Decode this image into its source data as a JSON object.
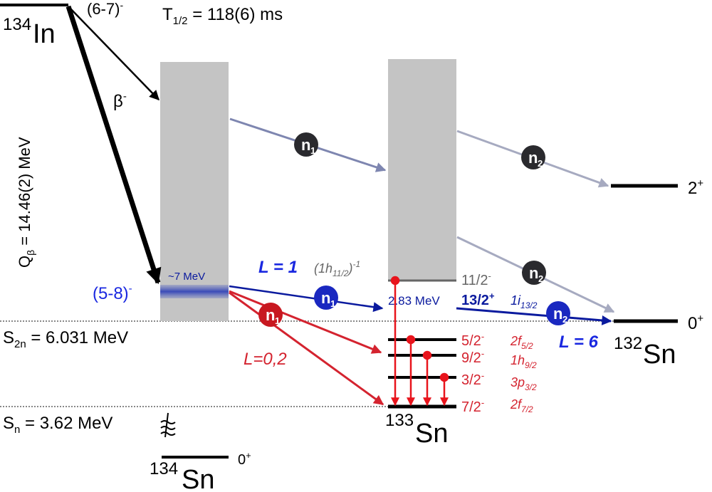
{
  "parent": {
    "element_sup": "134",
    "element": "In",
    "spin": "(6-7)",
    "spin_sup": "-",
    "half_life_T": "T",
    "half_life_sub": "1/2",
    "half_life_value": " = 118(6) ms"
  },
  "beta": {
    "label": "β",
    "sup": "-"
  },
  "qbeta": {
    "Q": "Q",
    "sub": "β",
    "value": " = 14.46(2) MeV"
  },
  "populated_state": {
    "spin": "(5-8)",
    "sup": "-",
    "energy": "~7 MeV"
  },
  "s2n": {
    "S": "S",
    "sub": "2n",
    "value": " = 6.031 MeV"
  },
  "sn": {
    "S": "S",
    "sub": "n",
    "value": " = 3.62 MeV"
  },
  "daughter134": {
    "sup": "134",
    "element": "Sn",
    "spin": "0",
    "spin_sup": "+"
  },
  "sn133": {
    "sup": "133",
    "element": "Sn",
    "levels": [
      {
        "spin": "11/2",
        "sup": "-",
        "config": "(1h",
        "config_sub": "11/2",
        "config_end": ")",
        "config_sup": "-1"
      },
      {
        "energy": "2.83 MeV",
        "spin": "13/2",
        "sup": "+",
        "config": "1i",
        "config_sub": "13/2"
      },
      {
        "spin": "5/2",
        "sup": "-",
        "config": "2f",
        "config_sub": "5/2"
      },
      {
        "spin": "9/2",
        "sup": "-",
        "config": "1h",
        "config_sub": "9/2"
      },
      {
        "spin": "3/2",
        "sup": "-",
        "config": "3p",
        "config_sub": "3/2"
      },
      {
        "spin": "7/2",
        "sup": "-",
        "config": "2f",
        "config_sub": "7/2"
      }
    ]
  },
  "sn132": {
    "sup": "132",
    "element": "Sn",
    "levels": [
      {
        "spin": "2",
        "sup": "+"
      },
      {
        "spin": "0",
        "sup": "+"
      }
    ]
  },
  "neutrons": {
    "n": "n",
    "sub1": "1",
    "sub2": "2"
  },
  "L_labels": {
    "L1": "L = 1",
    "L02": "L=0,2",
    "L6": "L = 6"
  },
  "colors": {
    "black": "#000000",
    "gray_box": "#c4c4c4",
    "blue": "#0a1a9e",
    "red": "#d4232f",
    "red_bright": "#e8141c",
    "slate_arrow": "#7e86b0",
    "gray_arrow": "#a6aac0",
    "neutron_dark": "#2a2a2e"
  }
}
